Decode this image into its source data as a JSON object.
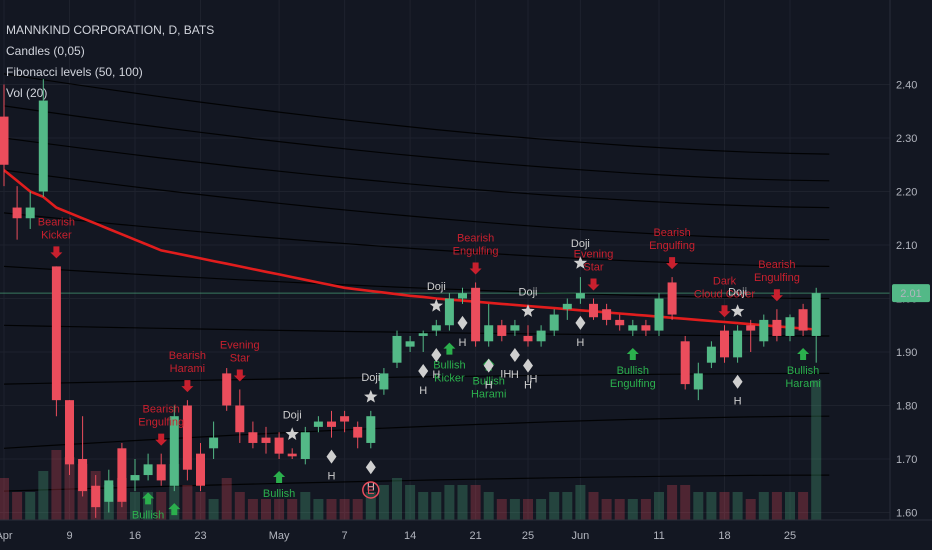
{
  "legend": {
    "title": "MANNKIND CORPORATION, D, BATS",
    "candles": "Candles (0,05)",
    "fib": "Fibonacci levels (50, 100)",
    "vol": "Vol (20)"
  },
  "colors": {
    "background": "#131722",
    "bull": "#53b987",
    "bear": "#eb4d5c",
    "ma": "#e11d1d",
    "fib_lines": "#000000",
    "grid": "#1e222d",
    "bear_label": "#c8202e",
    "bull_label": "#2bb04d",
    "neutral_label": "#cfcfcf",
    "price_tag": "#53b987"
  },
  "chart_data": {
    "type": "candlestick",
    "symbol": "MANNKIND CORPORATION",
    "interval": "D",
    "exchange": "BATS",
    "ylim": [
      1.54,
      2.44
    ],
    "y_ticks": [
      1.6,
      1.7,
      1.8,
      1.9,
      2.0,
      2.1,
      2.2,
      2.3,
      2.4
    ],
    "y_tick_labels": [
      "1.60",
      "1.70",
      "1.80",
      "1.90",
      "2.00",
      "2.10",
      "2.20",
      "2.30",
      "2.40"
    ],
    "x_tick_labels": [
      "Apr",
      "9",
      "16",
      "23",
      "May",
      "7",
      "14",
      "21",
      "25",
      "Jun",
      "11",
      "18",
      "25"
    ],
    "x_tick_bar_index": [
      0,
      5,
      10,
      15,
      21,
      26,
      31,
      36,
      40,
      44,
      50,
      55,
      60
    ],
    "last_price": "2.01",
    "last_price_value": 2.01,
    "candles": [
      {
        "o": 2.34,
        "h": 2.4,
        "c": 2.25,
        "l": 2.21
      },
      {
        "o": 2.17,
        "h": 2.21,
        "c": 2.15,
        "l": 2.11
      },
      {
        "o": 2.15,
        "h": 2.2,
        "c": 2.17,
        "l": 2.13
      },
      {
        "o": 2.2,
        "h": 2.41,
        "c": 2.37,
        "l": 2.19
      },
      {
        "o": 2.06,
        "h": 2.06,
        "c": 1.81,
        "l": 1.78
      },
      {
        "o": 1.81,
        "h": 1.81,
        "c": 1.69,
        "l": 1.67
      },
      {
        "o": 1.7,
        "h": 1.78,
        "c": 1.64,
        "l": 1.63
      },
      {
        "o": 1.65,
        "h": 1.67,
        "c": 1.61,
        "l": 1.59
      },
      {
        "o": 1.62,
        "h": 1.68,
        "c": 1.66,
        "l": 1.6
      },
      {
        "o": 1.72,
        "h": 1.73,
        "c": 1.62,
        "l": 1.61
      },
      {
        "o": 1.66,
        "h": 1.7,
        "c": 1.67,
        "l": 1.64
      },
      {
        "o": 1.67,
        "h": 1.71,
        "c": 1.69,
        "l": 1.66
      },
      {
        "o": 1.69,
        "h": 1.71,
        "c": 1.66,
        "l": 1.65
      },
      {
        "o": 1.65,
        "h": 1.8,
        "c": 1.78,
        "l": 1.64
      },
      {
        "o": 1.8,
        "h": 1.81,
        "c": 1.68,
        "l": 1.66
      },
      {
        "o": 1.71,
        "h": 1.73,
        "c": 1.65,
        "l": 1.64
      },
      {
        "o": 1.72,
        "h": 1.77,
        "c": 1.74,
        "l": 1.7
      },
      {
        "o": 1.86,
        "h": 1.87,
        "c": 1.8,
        "l": 1.79
      },
      {
        "o": 1.8,
        "h": 1.83,
        "c": 1.75,
        "l": 1.73
      },
      {
        "o": 1.75,
        "h": 1.77,
        "c": 1.73,
        "l": 1.72
      },
      {
        "o": 1.74,
        "h": 1.76,
        "c": 1.73,
        "l": 1.71
      },
      {
        "o": 1.74,
        "h": 1.75,
        "c": 1.71,
        "l": 1.7
      },
      {
        "o": 1.71,
        "h": 1.72,
        "c": 1.705,
        "l": 1.7
      },
      {
        "o": 1.7,
        "h": 1.76,
        "c": 1.75,
        "l": 1.69
      },
      {
        "o": 1.76,
        "h": 1.78,
        "c": 1.77,
        "l": 1.75
      },
      {
        "o": 1.77,
        "h": 1.79,
        "c": 1.76,
        "l": 1.74
      },
      {
        "o": 1.78,
        "h": 1.79,
        "c": 1.77,
        "l": 1.75
      },
      {
        "o": 1.76,
        "h": 1.77,
        "c": 1.74,
        "l": 1.72
      },
      {
        "o": 1.73,
        "h": 1.79,
        "c": 1.78,
        "l": 1.72
      },
      {
        "o": 1.83,
        "h": 1.87,
        "c": 1.86,
        "l": 1.82
      },
      {
        "o": 1.88,
        "h": 1.94,
        "c": 1.93,
        "l": 1.87
      },
      {
        "o": 1.91,
        "h": 1.93,
        "c": 1.92,
        "l": 1.9
      },
      {
        "o": 1.93,
        "h": 1.94,
        "c": 1.935,
        "l": 1.9
      },
      {
        "o": 1.94,
        "h": 1.96,
        "c": 1.95,
        "l": 1.93
      },
      {
        "o": 1.95,
        "h": 2.01,
        "c": 2.0,
        "l": 1.94
      },
      {
        "o": 2.0,
        "h": 2.02,
        "c": 2.01,
        "l": 1.99
      },
      {
        "o": 2.02,
        "h": 2.03,
        "c": 1.92,
        "l": 1.91
      },
      {
        "o": 1.92,
        "h": 1.99,
        "c": 1.95,
        "l": 1.91
      },
      {
        "o": 1.95,
        "h": 1.96,
        "c": 1.93,
        "l": 1.92
      },
      {
        "o": 1.94,
        "h": 1.96,
        "c": 1.95,
        "l": 1.93
      },
      {
        "o": 1.93,
        "h": 1.95,
        "c": 1.92,
        "l": 1.91
      },
      {
        "o": 1.92,
        "h": 1.95,
        "c": 1.94,
        "l": 1.91
      },
      {
        "o": 1.94,
        "h": 1.98,
        "c": 1.97,
        "l": 1.93
      },
      {
        "o": 1.98,
        "h": 2.0,
        "c": 1.99,
        "l": 1.96
      },
      {
        "o": 2.0,
        "h": 2.04,
        "c": 2.01,
        "l": 1.99
      },
      {
        "o": 1.99,
        "h": 2.0,
        "c": 1.965,
        "l": 1.96
      },
      {
        "o": 1.98,
        "h": 1.99,
        "c": 1.96,
        "l": 1.95
      },
      {
        "o": 1.96,
        "h": 1.97,
        "c": 1.95,
        "l": 1.94
      },
      {
        "o": 1.94,
        "h": 1.96,
        "c": 1.95,
        "l": 1.93
      },
      {
        "o": 1.95,
        "h": 1.96,
        "c": 1.94,
        "l": 1.93
      },
      {
        "o": 1.94,
        "h": 2.01,
        "c": 2.0,
        "l": 1.93
      },
      {
        "o": 2.03,
        "h": 2.04,
        "c": 1.97,
        "l": 1.96
      },
      {
        "o": 1.92,
        "h": 1.93,
        "c": 1.84,
        "l": 1.83
      },
      {
        "o": 1.83,
        "h": 1.88,
        "c": 1.86,
        "l": 1.81
      },
      {
        "o": 1.88,
        "h": 1.92,
        "c": 1.91,
        "l": 1.87
      },
      {
        "o": 1.94,
        "h": 1.95,
        "c": 1.89,
        "l": 1.88
      },
      {
        "o": 1.89,
        "h": 1.95,
        "c": 1.94,
        "l": 1.88
      },
      {
        "o": 1.95,
        "h": 1.96,
        "c": 1.94,
        "l": 1.9
      },
      {
        "o": 1.92,
        "h": 1.97,
        "c": 1.96,
        "l": 1.91
      },
      {
        "o": 1.96,
        "h": 1.98,
        "c": 1.93,
        "l": 1.92
      },
      {
        "o": 1.93,
        "h": 1.97,
        "c": 1.965,
        "l": 1.92
      },
      {
        "o": 1.98,
        "h": 1.99,
        "c": 1.94,
        "l": 1.93
      },
      {
        "o": 1.93,
        "h": 2.02,
        "c": 2.01,
        "l": 1.88
      }
    ],
    "volume": [
      0.3,
      0.2,
      0.2,
      0.35,
      0.5,
      0.45,
      0.4,
      0.35,
      0.25,
      0.3,
      0.2,
      0.2,
      0.2,
      0.4,
      0.25,
      0.2,
      0.15,
      0.3,
      0.2,
      0.15,
      0.15,
      0.15,
      0.15,
      0.2,
      0.15,
      0.15,
      0.15,
      0.15,
      0.2,
      0.25,
      0.3,
      0.25,
      0.2,
      0.2,
      0.25,
      0.25,
      0.25,
      0.2,
      0.15,
      0.15,
      0.15,
      0.15,
      0.2,
      0.2,
      0.25,
      0.2,
      0.15,
      0.15,
      0.15,
      0.15,
      0.2,
      0.25,
      0.25,
      0.2,
      0.2,
      0.2,
      0.2,
      0.15,
      0.2,
      0.2,
      0.2,
      0.2,
      1.0
    ],
    "moving_average": [
      2.24,
      2.22,
      2.2,
      2.19,
      2.17,
      2.16,
      2.15,
      2.14,
      2.13,
      2.12,
      2.11,
      2.1,
      2.09,
      2.085,
      2.08,
      2.075,
      2.07,
      2.065,
      2.06,
      2.055,
      2.05,
      2.045,
      2.04,
      2.035,
      2.03,
      2.025,
      2.02,
      2.017,
      2.014,
      2.011,
      2.008,
      2.005,
      2.003,
      2.0,
      1.998,
      1.996,
      1.994,
      1.992,
      1.99,
      1.988,
      1.986,
      1.984,
      1.982,
      1.98,
      1.978,
      1.976,
      1.974,
      1.972,
      1.97,
      1.968,
      1.966,
      1.964,
      1.962,
      1.96,
      1.958,
      1.956,
      1.954,
      1.952,
      1.95,
      1.948,
      1.946,
      1.944,
      1.942
    ],
    "patterns": [
      {
        "bar": 4,
        "lines": [
          "Bearish",
          "Kicker"
        ],
        "kind": "bear"
      },
      {
        "bar": 12,
        "lines": [
          "Bearish",
          "Engulfing"
        ],
        "kind": "bear"
      },
      {
        "bar": 14,
        "lines": [
          "Bearish",
          "Harami"
        ],
        "kind": "bear"
      },
      {
        "bar": 18,
        "lines": [
          "Evening",
          "Star"
        ],
        "kind": "bear"
      },
      {
        "bar": 22,
        "lines": [
          "Doji"
        ],
        "kind": "doji"
      },
      {
        "bar": 28,
        "lines": [
          "Doji"
        ],
        "kind": "doji"
      },
      {
        "bar": 33,
        "lines": [
          "Doji"
        ],
        "kind": "doji"
      },
      {
        "bar": 36,
        "lines": [
          "Bearish",
          "Engulfing"
        ],
        "kind": "bear"
      },
      {
        "bar": 40,
        "lines": [
          "Doji"
        ],
        "kind": "doji"
      },
      {
        "bar": 44,
        "lines": [
          "Doji"
        ],
        "kind": "doji"
      },
      {
        "bar": 45,
        "lines": [
          "Evening",
          "Star"
        ],
        "kind": "bear"
      },
      {
        "bar": 51,
        "lines": [
          "Bearish",
          "Engulfing"
        ],
        "kind": "bear"
      },
      {
        "bar": 55,
        "lines": [
          "Dark",
          "Cloud Cover"
        ],
        "kind": "bear"
      },
      {
        "bar": 56,
        "lines": [
          "Doji"
        ],
        "kind": "doji"
      },
      {
        "bar": 59,
        "lines": [
          "Bearish",
          "Engulfing"
        ],
        "kind": "bear"
      },
      {
        "bar": 11,
        "lines": [
          "Bullish"
        ],
        "kind": "bull"
      },
      {
        "bar": 13,
        "lines": [
          "Bullish"
        ],
        "kind": "bull"
      },
      {
        "bar": 21,
        "lines": [
          "Bullish"
        ],
        "kind": "bull"
      },
      {
        "bar": 34,
        "lines": [
          "Bullish",
          "Kicker"
        ],
        "kind": "bull"
      },
      {
        "bar": 37,
        "lines": [
          "Bullish",
          "Harami"
        ],
        "kind": "bull"
      },
      {
        "bar": 48,
        "lines": [
          "Bullish",
          "Engulfing"
        ],
        "kind": "bull"
      },
      {
        "bar": 61,
        "lines": [
          "Bullish",
          "Harami"
        ],
        "kind": "bull"
      }
    ],
    "h_markers": [
      25,
      28,
      32,
      33,
      35,
      37,
      39,
      40,
      44,
      56
    ],
    "ih_markers": [
      38,
      40
    ],
    "event_marker": {
      "bar": 28,
      "label": "E"
    }
  }
}
